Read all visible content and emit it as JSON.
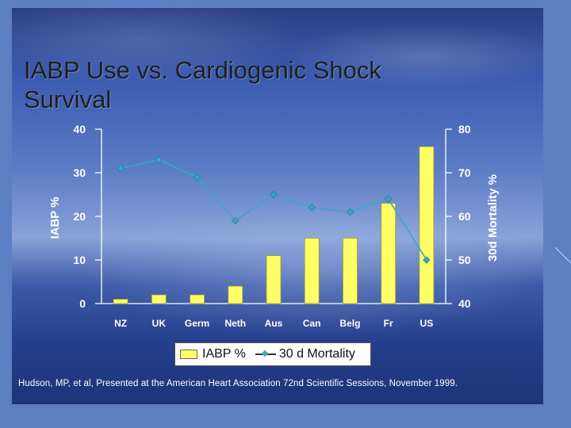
{
  "slide": {
    "title_line1": "IABP Use vs. Cardiogenic Shock",
    "title_line2": "Survival",
    "citation": "Hudson, MP, et al,  Presented at the American Heart Association  72nd Scientific Sessions, November 1999."
  },
  "legend": {
    "bar_label": "IABP %",
    "line_label": "30 d Mortality"
  },
  "chart_data": {
    "type": "bar+line",
    "categories": [
      "NZ",
      "UK",
      "Germ",
      "Neth",
      "Aus",
      "Can",
      "Belg",
      "Fr",
      "US"
    ],
    "series": [
      {
        "name": "IABP %",
        "type": "bar",
        "axis": "left",
        "values": [
          1,
          2,
          2,
          4,
          11,
          15,
          15,
          23,
          36
        ],
        "color": "#ffff66"
      },
      {
        "name": "30 d Mortality",
        "type": "line",
        "axis": "right",
        "values": [
          71,
          73,
          69,
          59,
          65,
          62,
          61,
          64,
          50
        ],
        "color": "#3aa6c8"
      }
    ],
    "y_left": {
      "label": "IABP %",
      "min": 0,
      "max": 40,
      "ticks": [
        0,
        10,
        20,
        30,
        40
      ]
    },
    "y_right": {
      "label": "30d Mortality %",
      "min": 40,
      "max": 80,
      "ticks": [
        40,
        50,
        60,
        70,
        80
      ]
    },
    "legend_position": "bottom"
  }
}
